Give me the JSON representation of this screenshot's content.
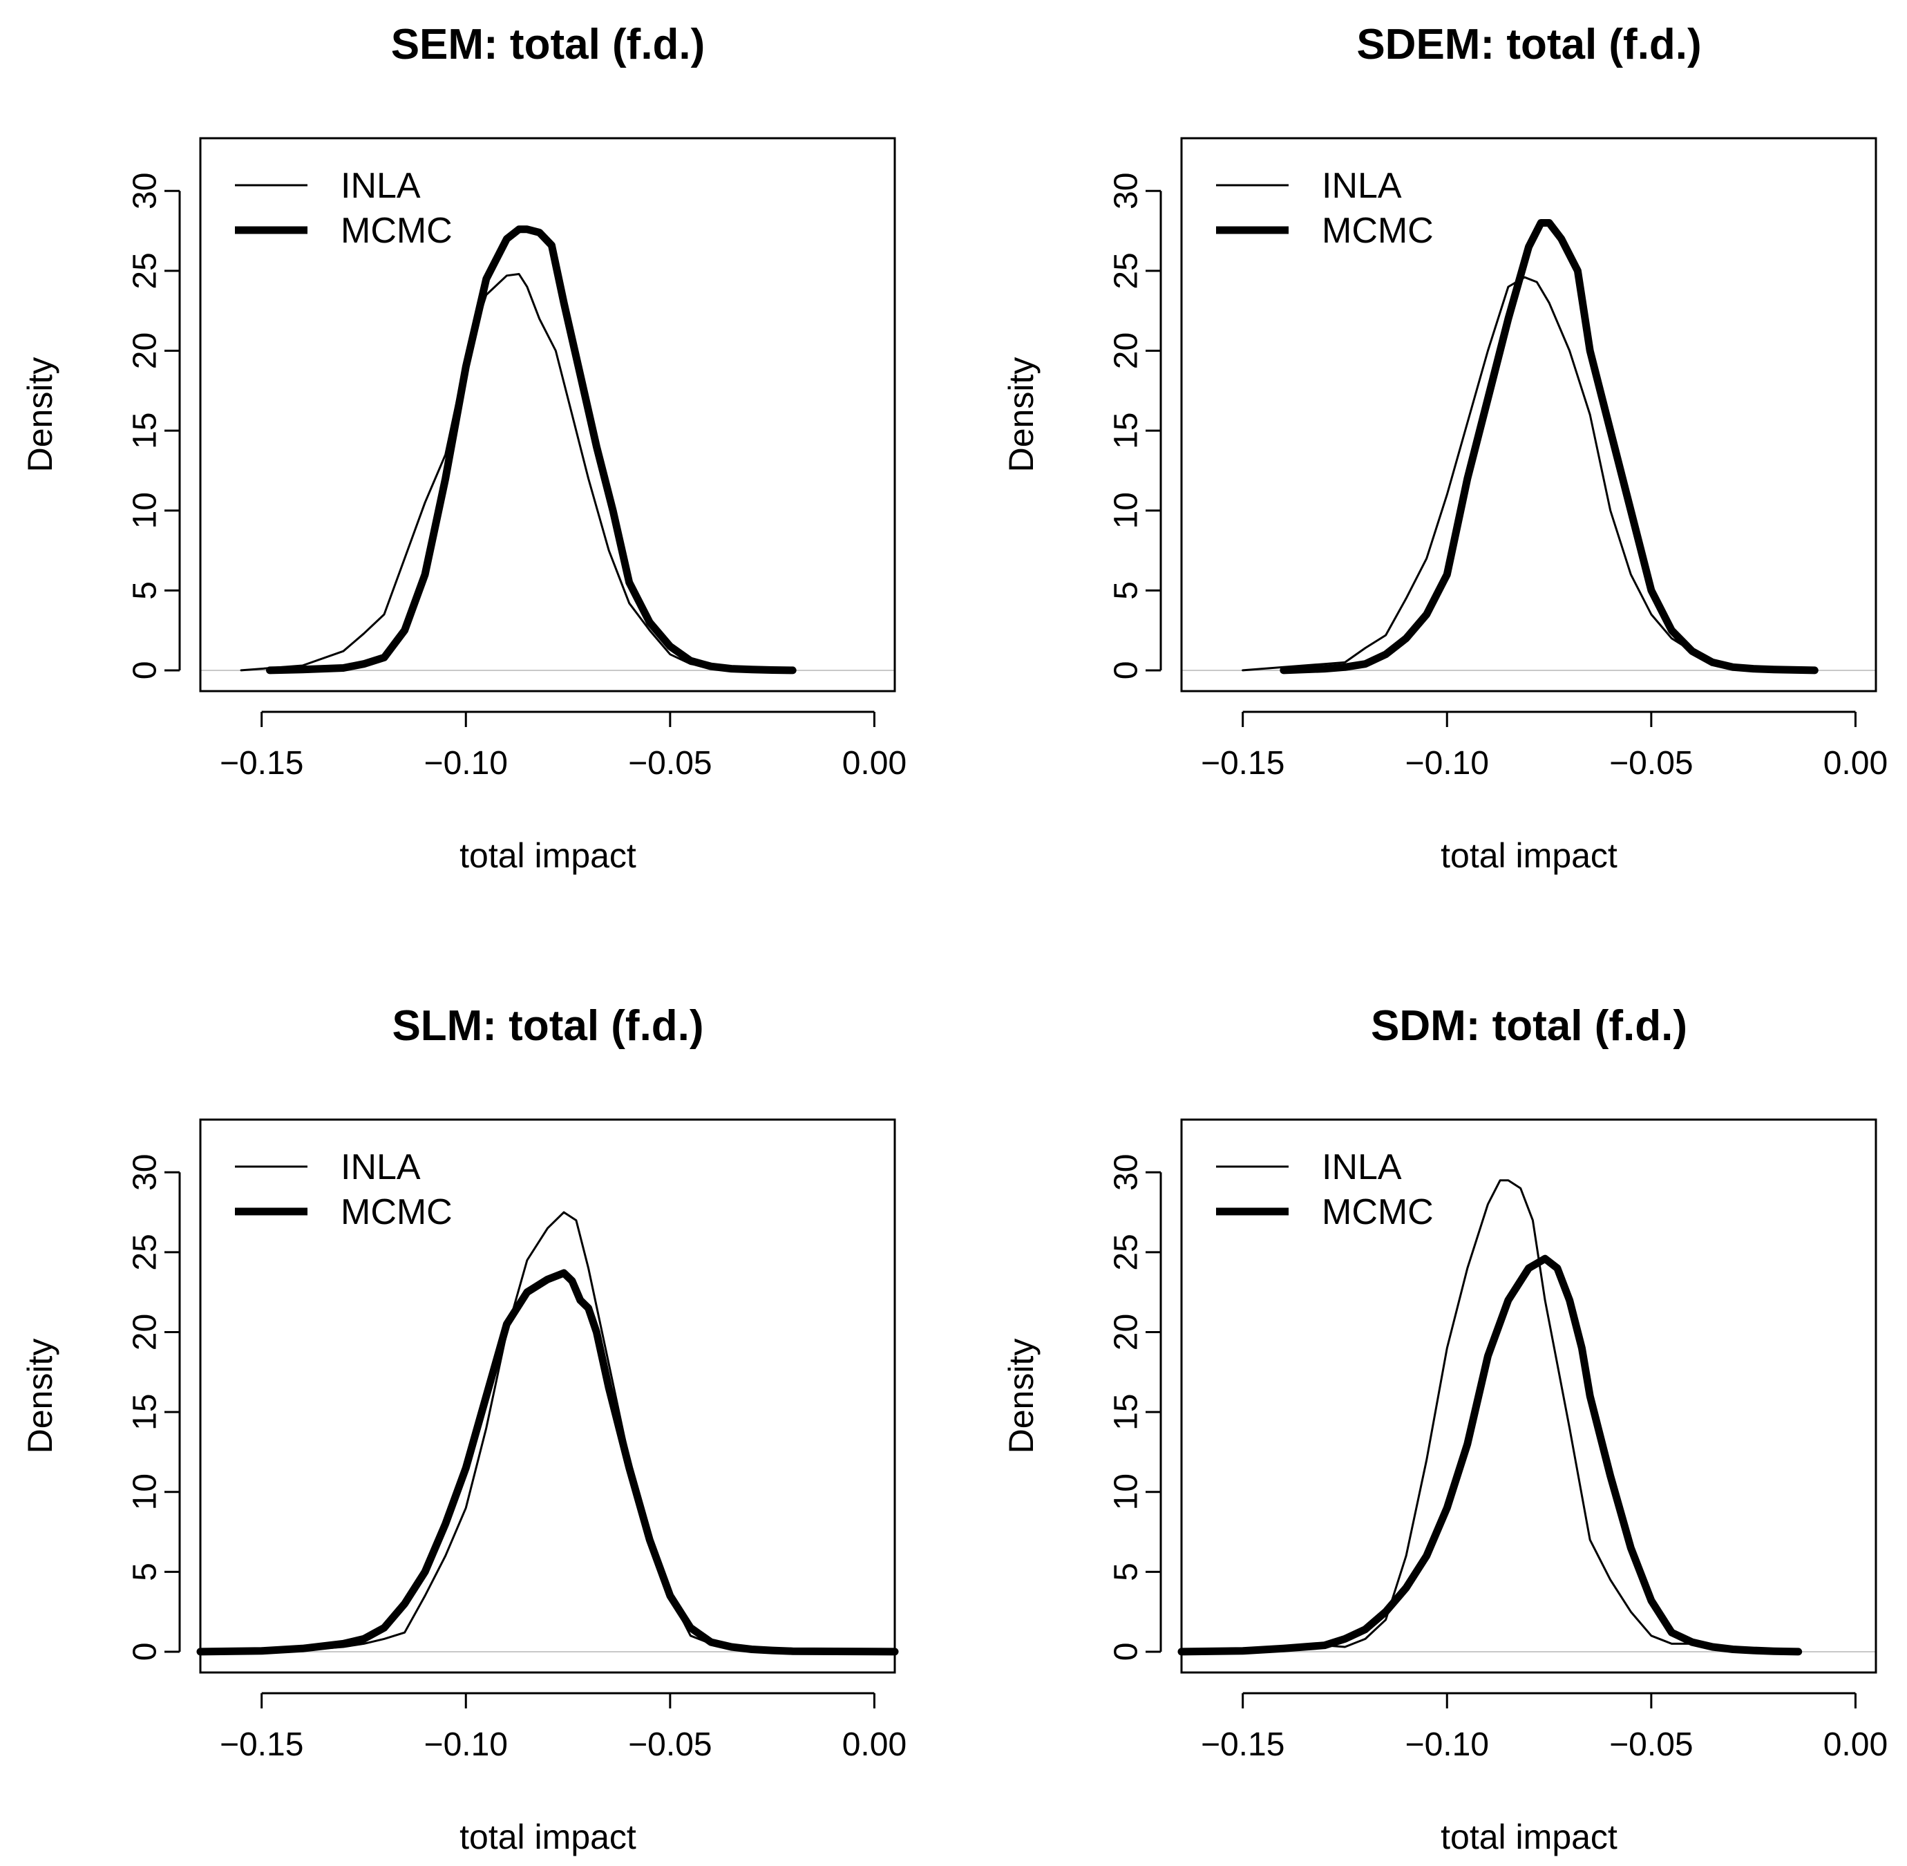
{
  "chart_data": [
    {
      "type": "line",
      "title": "SEM: total (f.d.)",
      "xlabel": "total impact",
      "ylabel": "Density",
      "xlim": [
        -0.165,
        0.005
      ],
      "ylim": [
        -1.3,
        33.3
      ],
      "xticks": [
        -0.15,
        -0.1,
        -0.05,
        0.0
      ],
      "xtick_labels": [
        "−0.15",
        "−0.10",
        "−0.05",
        "0.00"
      ],
      "yticks": [
        0,
        5,
        10,
        15,
        20,
        25,
        30
      ],
      "ytick_labels": [
        "0",
        "5",
        "10",
        "15",
        "20",
        "25",
        "30"
      ],
      "legend": {
        "position": "top-left",
        "entries": [
          "INLA",
          "MCMC"
        ]
      },
      "series": [
        {
          "name": "INLA",
          "style": "thin",
          "x": [
            -0.155,
            -0.14,
            -0.13,
            -0.125,
            -0.12,
            -0.115,
            -0.11,
            -0.105,
            -0.1,
            -0.095,
            -0.09,
            -0.087,
            -0.085,
            -0.082,
            -0.078,
            -0.074,
            -0.07,
            -0.065,
            -0.06,
            -0.055,
            -0.05,
            -0.045,
            -0.04,
            -0.035,
            -0.03,
            -0.025,
            -0.02
          ],
          "y": [
            0,
            0.3,
            1.2,
            2.3,
            3.5,
            7,
            10.5,
            13.5,
            19.5,
            23.5,
            24.7,
            24.8,
            24,
            22,
            20,
            16,
            12,
            7.5,
            4.2,
            2.5,
            1,
            0.4,
            0.2,
            0.1,
            0.05,
            0.02,
            0
          ]
        },
        {
          "name": "MCMC",
          "style": "thick",
          "x": [
            -0.148,
            -0.14,
            -0.13,
            -0.125,
            -0.12,
            -0.115,
            -0.11,
            -0.105,
            -0.1,
            -0.095,
            -0.09,
            -0.087,
            -0.085,
            -0.082,
            -0.079,
            -0.076,
            -0.072,
            -0.068,
            -0.064,
            -0.06,
            -0.055,
            -0.05,
            -0.045,
            -0.04,
            -0.035,
            -0.03,
            -0.025,
            -0.02
          ],
          "y": [
            0,
            0.05,
            0.15,
            0.4,
            0.8,
            2.5,
            6,
            12,
            19,
            24.5,
            27,
            27.6,
            27.6,
            27.4,
            26.6,
            23,
            18.5,
            14,
            10,
            5.5,
            3,
            1.5,
            0.6,
            0.25,
            0.1,
            0.05,
            0.02,
            0
          ]
        }
      ]
    },
    {
      "type": "line",
      "title": "SDEM: total (f.d.)",
      "xlabel": "total impact",
      "ylabel": "Density",
      "xlim": [
        -0.165,
        0.005
      ],
      "ylim": [
        -1.3,
        33.3
      ],
      "xticks": [
        -0.15,
        -0.1,
        -0.05,
        0.0
      ],
      "xtick_labels": [
        "−0.15",
        "−0.10",
        "−0.05",
        "0.00"
      ],
      "yticks": [
        0,
        5,
        10,
        15,
        20,
        25,
        30
      ],
      "ytick_labels": [
        "0",
        "5",
        "10",
        "15",
        "20",
        "25",
        "30"
      ],
      "legend": {
        "position": "top-left",
        "entries": [
          "INLA",
          "MCMC"
        ]
      },
      "series": [
        {
          "name": "INLA",
          "style": "thin",
          "x": [
            -0.15,
            -0.14,
            -0.13,
            -0.125,
            -0.12,
            -0.115,
            -0.11,
            -0.105,
            -0.1,
            -0.095,
            -0.09,
            -0.085,
            -0.081,
            -0.078,
            -0.075,
            -0.07,
            -0.065,
            -0.06,
            -0.055,
            -0.05,
            -0.045,
            -0.04,
            -0.035,
            -0.03,
            -0.025,
            -0.02,
            -0.01
          ],
          "y": [
            0,
            0.2,
            0.4,
            0.5,
            1.4,
            2.2,
            4.5,
            7,
            11,
            15.5,
            20,
            24,
            24.6,
            24.3,
            23,
            20,
            16,
            10,
            6,
            3.5,
            2,
            1.2,
            0.5,
            0.2,
            0.1,
            0.05,
            0
          ]
        },
        {
          "name": "MCMC",
          "style": "thick",
          "x": [
            -0.14,
            -0.13,
            -0.125,
            -0.12,
            -0.115,
            -0.11,
            -0.105,
            -0.1,
            -0.095,
            -0.09,
            -0.085,
            -0.08,
            -0.077,
            -0.075,
            -0.072,
            -0.068,
            -0.065,
            -0.06,
            -0.055,
            -0.05,
            -0.045,
            -0.04,
            -0.035,
            -0.03,
            -0.025,
            -0.02,
            -0.01
          ],
          "y": [
            0,
            0.1,
            0.2,
            0.4,
            1,
            2,
            3.5,
            6,
            12,
            17,
            22,
            26.5,
            28,
            28,
            27,
            25,
            20,
            15,
            10,
            5,
            2.5,
            1.2,
            0.5,
            0.2,
            0.1,
            0.05,
            0
          ]
        }
      ]
    },
    {
      "type": "line",
      "title": "SLM: total (f.d.)",
      "xlabel": "total impact",
      "ylabel": "Density",
      "xlim": [
        -0.165,
        0.005
      ],
      "ylim": [
        -1.3,
        33.3
      ],
      "xticks": [
        -0.15,
        -0.1,
        -0.05,
        0.0
      ],
      "xtick_labels": [
        "−0.15",
        "−0.10",
        "−0.05",
        "0.00"
      ],
      "yticks": [
        0,
        5,
        10,
        15,
        20,
        25,
        30
      ],
      "ytick_labels": [
        "0",
        "5",
        "10",
        "15",
        "20",
        "25",
        "30"
      ],
      "legend": {
        "position": "top-left",
        "entries": [
          "INLA",
          "MCMC"
        ]
      },
      "series": [
        {
          "name": "INLA",
          "style": "thin",
          "x": [
            -0.165,
            -0.14,
            -0.13,
            -0.125,
            -0.12,
            -0.115,
            -0.11,
            -0.105,
            -0.1,
            -0.095,
            -0.09,
            -0.085,
            -0.08,
            -0.076,
            -0.073,
            -0.07,
            -0.065,
            -0.06,
            -0.055,
            -0.05,
            -0.045,
            -0.04,
            -0.035,
            -0.03,
            -0.025,
            -0.02,
            0.005
          ],
          "y": [
            0,
            0.1,
            0.3,
            0.5,
            0.8,
            1.2,
            3.5,
            6,
            9,
            14,
            20,
            24.5,
            26.5,
            27.5,
            27,
            24,
            18,
            12,
            7,
            3.5,
            1,
            0.5,
            0.4,
            0.3,
            0.15,
            0.05,
            0
          ]
        },
        {
          "name": "MCMC",
          "style": "thick",
          "x": [
            -0.165,
            -0.15,
            -0.14,
            -0.13,
            -0.125,
            -0.12,
            -0.115,
            -0.11,
            -0.105,
            -0.1,
            -0.095,
            -0.09,
            -0.085,
            -0.08,
            -0.076,
            -0.074,
            -0.072,
            -0.07,
            -0.068,
            -0.065,
            -0.06,
            -0.055,
            -0.05,
            -0.045,
            -0.04,
            -0.035,
            -0.03,
            -0.025,
            -0.02,
            0.005
          ],
          "y": [
            0,
            0.05,
            0.2,
            0.5,
            0.8,
            1.5,
            3,
            5,
            8,
            11.5,
            16,
            20.5,
            22.5,
            23.3,
            23.7,
            23.2,
            22,
            21.5,
            20,
            16.5,
            11.5,
            7,
            3.5,
            1.5,
            0.6,
            0.3,
            0.15,
            0.08,
            0.03,
            0
          ]
        }
      ]
    },
    {
      "type": "line",
      "title": "SDM: total (f.d.)",
      "xlabel": "total impact",
      "ylabel": "Density",
      "xlim": [
        -0.165,
        0.005
      ],
      "ylim": [
        -1.3,
        33.3
      ],
      "xticks": [
        -0.15,
        -0.1,
        -0.05,
        0.0
      ],
      "xtick_labels": [
        "−0.15",
        "−0.10",
        "−0.05",
        "0.00"
      ],
      "yticks": [
        0,
        5,
        10,
        15,
        20,
        25,
        30
      ],
      "ytick_labels": [
        "0",
        "5",
        "10",
        "15",
        "20",
        "25",
        "30"
      ],
      "legend": {
        "position": "top-left",
        "entries": [
          "INLA",
          "MCMC"
        ]
      },
      "series": [
        {
          "name": "INLA",
          "style": "thin",
          "x": [
            -0.165,
            -0.14,
            -0.13,
            -0.125,
            -0.12,
            -0.115,
            -0.11,
            -0.105,
            -0.1,
            -0.095,
            -0.09,
            -0.087,
            -0.085,
            -0.082,
            -0.079,
            -0.076,
            -0.073,
            -0.07,
            -0.065,
            -0.06,
            -0.055,
            -0.05,
            -0.045,
            -0.04,
            -0.035,
            -0.03,
            -0.02
          ],
          "y": [
            0,
            0.2,
            0.4,
            0.3,
            0.8,
            2,
            6,
            12,
            19,
            24,
            28,
            29.5,
            29.5,
            29,
            27,
            22,
            18,
            14,
            7,
            4.5,
            2.5,
            1,
            0.5,
            0.5,
            0.2,
            0.1,
            0
          ]
        },
        {
          "name": "MCMC",
          "style": "thick",
          "x": [
            -0.165,
            -0.15,
            -0.14,
            -0.13,
            -0.125,
            -0.12,
            -0.115,
            -0.11,
            -0.105,
            -0.1,
            -0.095,
            -0.09,
            -0.085,
            -0.08,
            -0.076,
            -0.073,
            -0.07,
            -0.067,
            -0.065,
            -0.06,
            -0.055,
            -0.05,
            -0.045,
            -0.04,
            -0.035,
            -0.03,
            -0.025,
            -0.02,
            -0.014
          ],
          "y": [
            0,
            0.05,
            0.2,
            0.4,
            0.8,
            1.4,
            2.5,
            4,
            6,
            9,
            13,
            18.5,
            22,
            24,
            24.6,
            24,
            22,
            19,
            16,
            11,
            6.5,
            3.2,
            1.2,
            0.6,
            0.3,
            0.15,
            0.08,
            0.03,
            0
          ]
        }
      ]
    }
  ]
}
